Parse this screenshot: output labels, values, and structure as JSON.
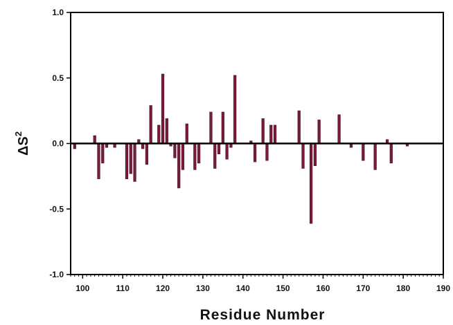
{
  "chart_data": {
    "type": "bar",
    "title": "",
    "xlabel": "Residue Number",
    "ylabel": "ΔS",
    "ylabel_superscript": "2",
    "xlim": [
      97,
      190
    ],
    "ylim": [
      -1.0,
      1.0
    ],
    "x_ticks": [
      100,
      110,
      120,
      130,
      140,
      150,
      160,
      170,
      180,
      190
    ],
    "y_ticks": [
      -1.0,
      -0.5,
      0.0,
      0.5,
      1.0
    ],
    "y_tick_labels": [
      "-1.0",
      "-0.5",
      "0.0",
      "0.5",
      "1.0"
    ],
    "x_minor_step": 1,
    "grid": false,
    "zero_line": true,
    "bar_color": "#7a1b3c",
    "x": [
      98,
      103,
      104,
      105,
      106,
      108,
      111,
      112,
      113,
      114,
      115,
      116,
      117,
      119,
      120,
      121,
      122,
      123,
      124,
      125,
      126,
      128,
      129,
      132,
      133,
      134,
      135,
      136,
      137,
      138,
      142,
      143,
      145,
      146,
      147,
      148,
      154,
      155,
      157,
      158,
      159,
      164,
      167,
      170,
      173,
      176,
      177,
      181
    ],
    "values": [
      -0.04,
      0.06,
      -0.27,
      -0.15,
      -0.03,
      -0.03,
      -0.27,
      -0.23,
      -0.29,
      0.03,
      -0.04,
      -0.16,
      0.29,
      0.14,
      0.53,
      0.19,
      -0.02,
      -0.11,
      -0.34,
      -0.2,
      0.15,
      -0.2,
      -0.15,
      0.24,
      -0.19,
      -0.08,
      0.24,
      -0.12,
      -0.03,
      0.52,
      0.02,
      -0.14,
      0.19,
      -0.13,
      0.14,
      0.14,
      0.25,
      -0.19,
      -0.61,
      -0.17,
      0.18,
      0.22,
      -0.03,
      -0.13,
      -0.2,
      0.03,
      -0.15,
      -0.02
    ]
  }
}
